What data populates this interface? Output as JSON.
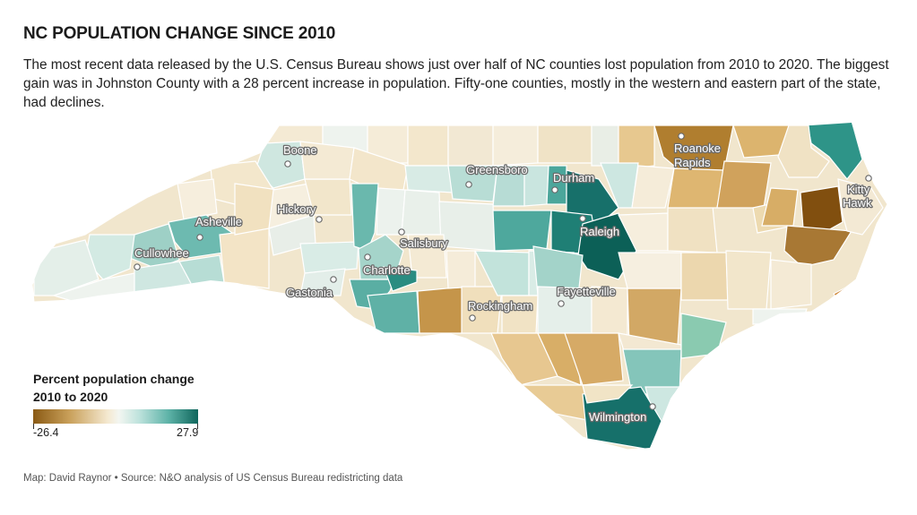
{
  "header": {
    "title": "NC POPULATION CHANGE SINCE 2010",
    "subtitle": "The most recent data released by the U.S. Census Bureau shows just over half of NC counties lost population from 2010 to 2020. The biggest gain was in Johnston County with a 28 percent increase in population. Fifty-one counties, mostly in the western and eastern part of the state, had declines."
  },
  "legend": {
    "title": "Percent population change 2010 to 2020",
    "min_label": "-26.4",
    "max_label": "27.9",
    "colors": [
      "#8a5a14",
      "#c9a05a",
      "#f4e8cf",
      "#f3f6f1",
      "#bfe3dd",
      "#5eb3a8",
      "#0f665c"
    ]
  },
  "cities": [
    {
      "name": "Boone"
    },
    {
      "name": "Greensboro"
    },
    {
      "name": "Durham"
    },
    {
      "name": "Roanoke Rapids"
    },
    {
      "name": "Kitty Hawk"
    },
    {
      "name": "Asheville"
    },
    {
      "name": "Hickory"
    },
    {
      "name": "Raleigh"
    },
    {
      "name": "Salisbury"
    },
    {
      "name": "Cullowhee"
    },
    {
      "name": "Charlotte"
    },
    {
      "name": "Gastonia"
    },
    {
      "name": "Fayetteville"
    },
    {
      "name": "Rockingham"
    },
    {
      "name": "Wilmington"
    }
  ],
  "source": "Map: David Raynor • Source: N&O analysis of US Census Bureau redistricting data"
}
